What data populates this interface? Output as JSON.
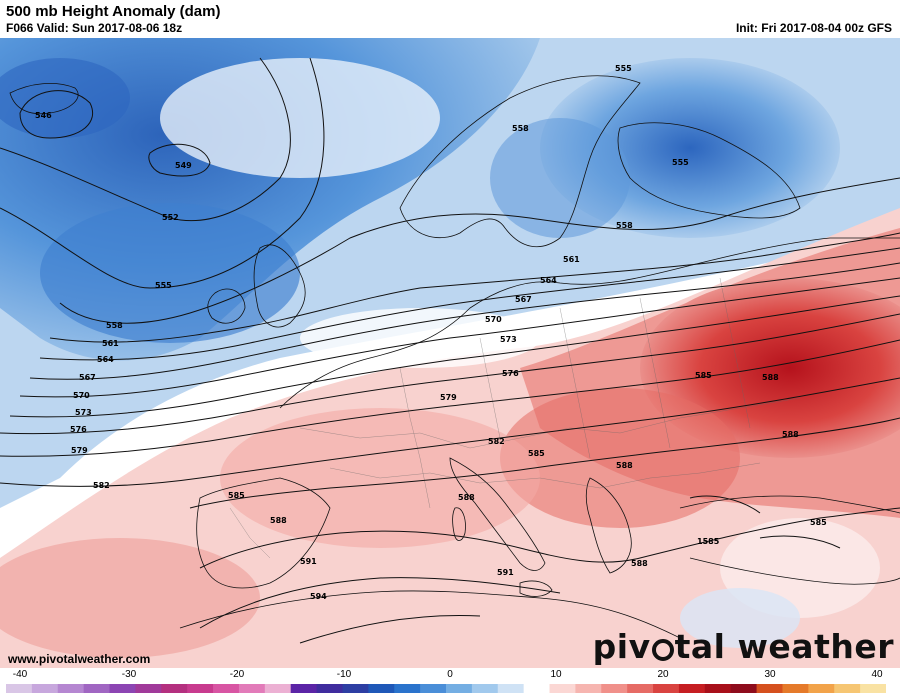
{
  "header": {
    "title": "500 mb Height Anomaly (dam)",
    "valid": "F066 Valid: Sun 2017-08-06 18z",
    "init": "Init: Fri 2017-08-04 00z GFS"
  },
  "footer": {
    "website": "www.pivotalweather.com",
    "brand_left": "piv",
    "brand_right": "tal weather"
  },
  "contour_labels": [
    "546",
    "549",
    "552",
    "555",
    "558",
    "561",
    "564",
    "567",
    "570",
    "573",
    "576",
    "579",
    "582",
    "585",
    "588",
    "591",
    "594",
    "555",
    "558",
    "561",
    "564",
    "567",
    "570",
    "573",
    "576",
    "579",
    "582",
    "585",
    "588",
    "588",
    "585",
    "591",
    "588",
    "585",
    "1585"
  ],
  "colorbar": {
    "ticks": [
      "-40",
      "-30",
      "-20",
      "-10",
      "0",
      "10",
      "20",
      "30",
      "40"
    ],
    "colors": [
      "#d9c6e6",
      "#c7a7dd",
      "#b587d1",
      "#a066c2",
      "#8c45b3",
      "#a03a9a",
      "#b4307f",
      "#c83b8e",
      "#d855a3",
      "#e27bb9",
      "#ecb0d3",
      "#5b24a6",
      "#3f2c9e",
      "#2d3ea3",
      "#1f58b8",
      "#2a73cc",
      "#4a8ed8",
      "#74aee3",
      "#a1c9ed",
      "#cfe2f5",
      "#ffffff",
      "#fbd7d4",
      "#f6b5b0",
      "#f0908a",
      "#e66b65",
      "#d94340",
      "#c61e22",
      "#a8101a",
      "#8e0c1c",
      "#d5501e",
      "#e57a2a",
      "#f2a34a",
      "#f6c673",
      "#f9e2a3"
    ]
  }
}
